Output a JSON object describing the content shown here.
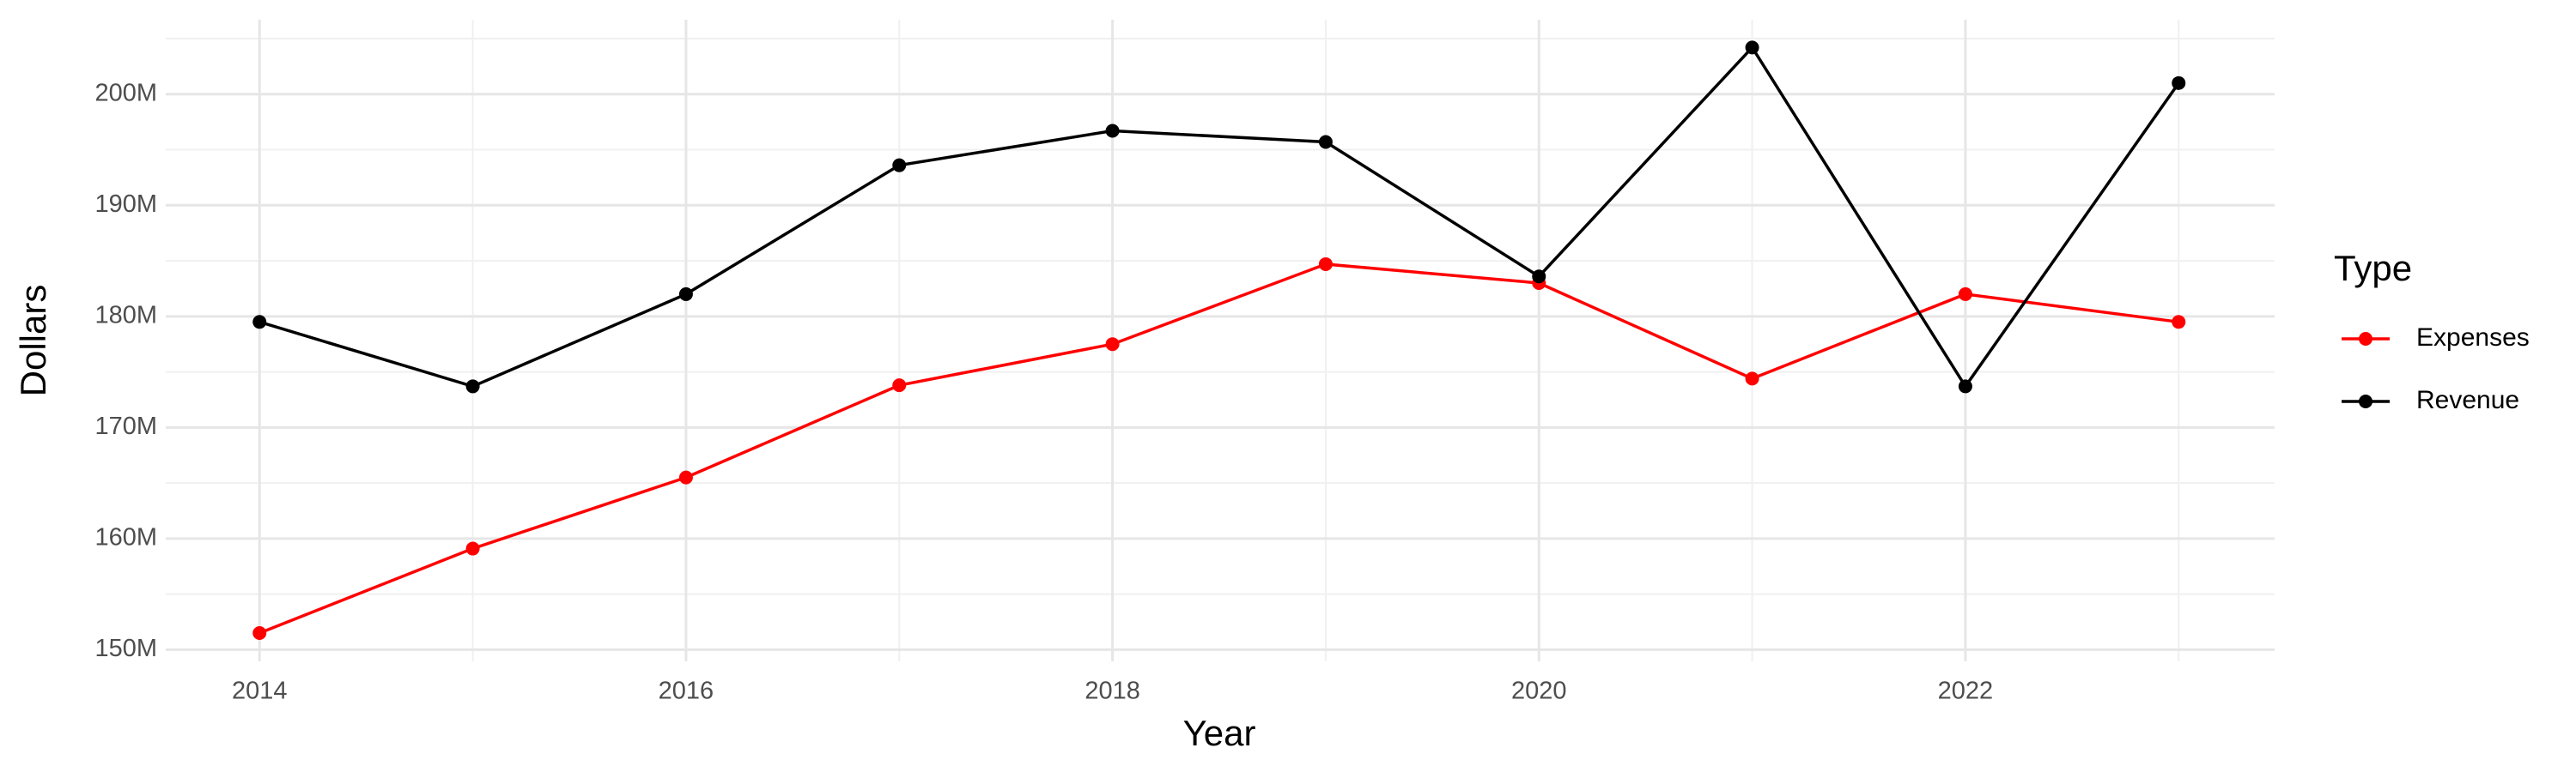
{
  "chart_data": {
    "type": "line",
    "x_label": "Year",
    "y_label": "Dollars",
    "legend_title": "Type",
    "x": [
      2014,
      2015,
      2016,
      2017,
      2018,
      2019,
      2020,
      2021,
      2022,
      2023
    ],
    "series": [
      {
        "name": "Expenses",
        "color": "#ff0000",
        "values": [
          151500000,
          159100000,
          165500000,
          173800000,
          177500000,
          184700000,
          183000000,
          174400000,
          182000000,
          179500000
        ]
      },
      {
        "name": "Revenue",
        "color": "#000000",
        "values": [
          179500000,
          173700000,
          182000000,
          193600000,
          196700000,
          195700000,
          183600000,
          204200000,
          173700000,
          201000000
        ]
      }
    ],
    "xlim": [
      2013.56,
      2023.45
    ],
    "xticks": [
      2014,
      2016,
      2018,
      2020,
      2022
    ],
    "ylim": [
      148950000,
      206700000
    ],
    "yticks": [
      {
        "value": 150000000,
        "label": "150M"
      },
      {
        "value": 160000000,
        "label": "160M"
      },
      {
        "value": 170000000,
        "label": "170M"
      },
      {
        "value": 180000000,
        "label": "180M"
      },
      {
        "value": 190000000,
        "label": "190M"
      },
      {
        "value": 200000000,
        "label": "200M"
      }
    ],
    "grid": true,
    "legend_position": "right"
  }
}
